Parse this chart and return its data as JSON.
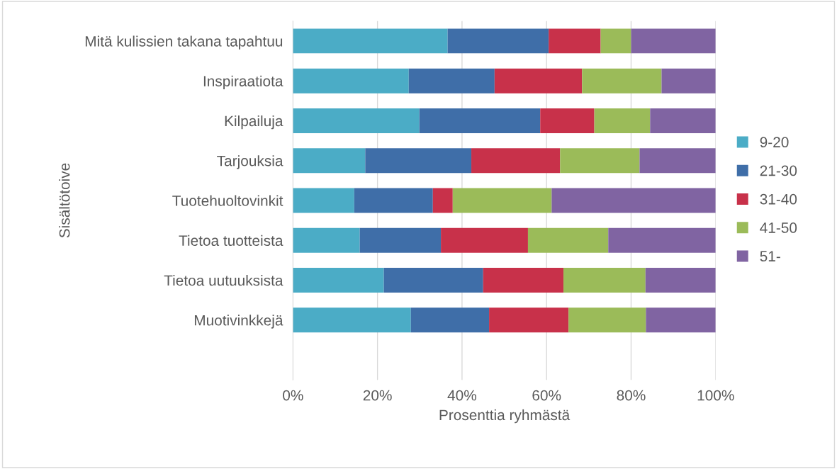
{
  "chart_data": {
    "type": "bar",
    "orientation": "horizontal",
    "stacked": true,
    "categories": [
      "Mitä kulissien takana tapahtuu",
      "Inspiraatiota",
      "Kilpailuja",
      "Tarjouksia",
      "Tuotehuoltovinkit",
      "Tietoa tuotteista",
      "Tietoa uutuuksista",
      "Muotivinkkejä",
      null
    ],
    "series": [
      {
        "name": "9-20",
        "color": "#4bacc6",
        "values": [
          36.6,
          27.4,
          29.9,
          17.1,
          14.5,
          15.8,
          21.5,
          27.9,
          null
        ]
      },
      {
        "name": "21-30",
        "color": "#3f6ea8",
        "values": [
          23.9,
          20.3,
          28.6,
          25.1,
          18.6,
          19.2,
          23.5,
          18.5,
          null
        ]
      },
      {
        "name": "31-40",
        "color": "#c8314a",
        "values": [
          12.3,
          20.7,
          12.8,
          21.0,
          4.7,
          20.6,
          19.0,
          18.8,
          null
        ]
      },
      {
        "name": "41-50",
        "color": "#9bbb59",
        "values": [
          7.2,
          18.8,
          13.2,
          18.8,
          23.4,
          19.0,
          19.4,
          18.3,
          null
        ]
      },
      {
        "name": "51-",
        "color": "#8064a2",
        "values": [
          20.0,
          12.8,
          15.5,
          18.0,
          38.8,
          25.4,
          16.6,
          16.5,
          null
        ]
      }
    ],
    "xlim": [
      0,
      100
    ],
    "xticks": [
      {
        "value": 0,
        "label": "0%"
      },
      {
        "value": 20,
        "label": "20%"
      },
      {
        "value": 40,
        "label": "40%"
      },
      {
        "value": 60,
        "label": "60%"
      },
      {
        "value": 80,
        "label": "80%"
      },
      {
        "value": 100,
        "label": "100%"
      }
    ],
    "xlabel": "Prosenttia ryhmästä",
    "ylabel": "Sisältötoive",
    "grid": "x",
    "legend": "right"
  }
}
